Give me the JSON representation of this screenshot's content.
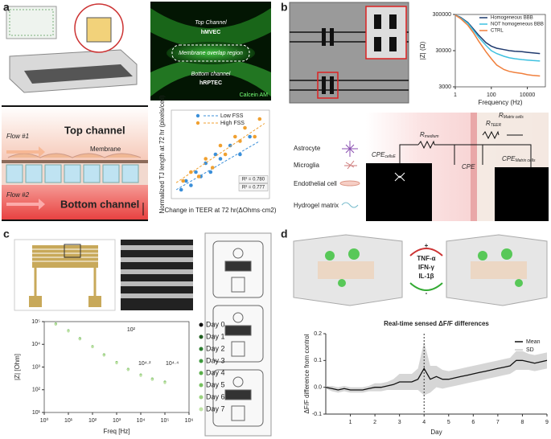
{
  "panel_labels": [
    "a",
    "b",
    "c",
    "d"
  ],
  "panel_a": {
    "image_labels": {
      "top_channel": "Top Channel",
      "top_cells": "hMVEC",
      "overlap": "Membrane overlap region",
      "bottom_channel": "Bottom channel",
      "bottom_cells": "hRPTEC",
      "stain": "Calcein AM"
    },
    "schematic": {
      "flow1": "Flow #1",
      "top": "Top channel",
      "membrane": "Membrane",
      "flow2": "Flow #2",
      "bottom": "Bottom channel"
    }
  },
  "panel_b": {
    "cell_types": [
      "Astrocyte",
      "Microglia",
      "Endothelial cell",
      "Hydrogel matrix"
    ],
    "circuit": [
      {
        "symbol": "CPE",
        "sub": "cellsE"
      },
      {
        "symbol": "R",
        "sub": "medium"
      },
      {
        "symbol": "R",
        "sub": "TEER"
      },
      {
        "symbol": "R",
        "sub": "Matrix cells"
      },
      {
        "symbol": "CPE"
      },
      {
        "symbol": "CPE",
        "sub": "Matrix cells"
      }
    ]
  },
  "panel_c": {
    "inset_labels": [
      "10²",
      "10⁴·²",
      "10⁴·⁴"
    ]
  },
  "panel_d": {
    "signs": [
      "+",
      "-"
    ],
    "cytokines": [
      "TNF-α",
      "IFN-γ",
      "IL-1β"
    ]
  },
  "chart_data": [
    {
      "type": "scatter",
      "xlabel": "Change in TEER at 72 hr(ΔOhms·cm2)",
      "ylabel": "Normalized TJ length at 72 hr (pixels/cell)",
      "xlim": [
        0,
        10
      ],
      "ylim": [
        0,
        10
      ],
      "series": [
        {
          "name": "Low FSS",
          "color": "#3b8fd9",
          "r2": "R² = 0.780",
          "x": [
            1,
            1.5,
            2,
            2.5,
            3,
            3.5,
            4,
            4.5,
            5,
            6,
            7,
            8
          ],
          "values": [
            1,
            2,
            1.5,
            3,
            2.5,
            4,
            3,
            5,
            4.5,
            6,
            5,
            7
          ],
          "trend": {
            "x": [
              0.5,
              9
            ],
            "values": [
              1,
              6.5
            ]
          }
        },
        {
          "name": "High FSS",
          "color": "#f0a030",
          "r2": "R² = 0.777",
          "x": [
            1.2,
            2,
            2.8,
            3.5,
            4.2,
            5,
            5.5,
            6.5,
            7,
            7.5,
            8.5,
            9
          ],
          "values": [
            2,
            3,
            2.5,
            4.5,
            3.5,
            6,
            5,
            7,
            6.5,
            8,
            7,
            9
          ],
          "trend": {
            "x": [
              0.5,
              9.5
            ],
            "values": [
              1.8,
              8.5
            ]
          }
        }
      ]
    },
    {
      "type": "line",
      "xlabel": "Frequency (Hz)",
      "ylabel": "|Z| (Ω)",
      "xlog": true,
      "ylog": true,
      "xlim": [
        1,
        100000
      ],
      "ylim": [
        3000,
        300000
      ],
      "xticks": [
        1,
        100,
        10000
      ],
      "yticks": [
        3000,
        30000,
        300000
      ],
      "x": [
        1,
        2,
        5,
        10,
        20,
        50,
        100,
        200,
        500,
        1000,
        2000,
        5000,
        10000,
        20000,
        50000
      ],
      "series": [
        {
          "name": "Homogeneous BBB",
          "color": "#1f3a6e",
          "values": [
            290000,
            250000,
            180000,
            120000,
            80000,
            50000,
            40000,
            35000,
            32000,
            30000,
            29000,
            28000,
            27000,
            26000,
            25000
          ]
        },
        {
          "name": "NOT homogeneous BBB",
          "color": "#3ec1e0",
          "values": [
            290000,
            240000,
            170000,
            110000,
            70000,
            42000,
            30000,
            25000,
            21000,
            19000,
            18000,
            17000,
            16500,
            16000,
            15500
          ]
        },
        {
          "name": "CTRL",
          "color": "#f07f3c",
          "values": [
            290000,
            230000,
            150000,
            95000,
            55000,
            28000,
            18000,
            12000,
            9000,
            8000,
            7500,
            7000,
            6500,
            6200,
            6000
          ]
        }
      ]
    },
    {
      "type": "line",
      "xlabel": "Freq [Hz]",
      "ylabel": "|Z| [Ohm]",
      "xlog": true,
      "ylog": true,
      "xlim": [
        1,
        1000000
      ],
      "ylim": [
        10,
        100000
      ],
      "xticks": [
        {
          "value": 1,
          "label": "10⁰"
        },
        {
          "value": 10,
          "label": "10¹"
        },
        {
          "value": 100,
          "label": "10²"
        },
        {
          "value": 1000,
          "label": "10³"
        },
        {
          "value": 10000,
          "label": "10⁴"
        },
        {
          "value": 100000,
          "label": "10⁵"
        },
        {
          "value": 1000000,
          "label": "10⁶"
        }
      ],
      "yticks": [
        {
          "value": 10,
          "label": "10¹"
        },
        {
          "value": 100,
          "label": "10²"
        },
        {
          "value": 1000,
          "label": "10³"
        },
        {
          "value": 10000,
          "label": "10⁴"
        },
        {
          "value": 100000,
          "label": "10⁵"
        }
      ],
      "x": [
        3,
        10,
        30,
        100,
        300,
        1000,
        3000,
        10000,
        30000,
        100000
      ],
      "series": [
        {
          "name": "Day 0",
          "color": "#111111",
          "values": [
            80000,
            40000,
            18000,
            8000,
            3500,
            1600,
            800,
            450,
            300,
            220
          ]
        },
        {
          "name": "Day 1",
          "color": "#1e5c1e",
          "values": [
            78000,
            39000,
            17500,
            7800,
            3400,
            1550,
            780,
            430,
            290,
            210
          ]
        },
        {
          "name": "Day 2",
          "color": "#2e7d32",
          "values": [
            76000,
            38000,
            17000,
            7600,
            3300,
            1500,
            760,
            420,
            280,
            205
          ]
        },
        {
          "name": "Day 3",
          "color": "#3f9a3f",
          "values": [
            82000,
            41000,
            18500,
            8200,
            3600,
            1650,
            820,
            460,
            310,
            225
          ]
        },
        {
          "name": "Day 4",
          "color": "#5aae4a",
          "values": [
            79000,
            39500,
            17800,
            7900,
            3450,
            1580,
            790,
            440,
            295,
            215
          ]
        },
        {
          "name": "Day 5",
          "color": "#78c060",
          "values": [
            77000,
            38500,
            17200,
            7700,
            3350,
            1520,
            770,
            425,
            285,
            208
          ]
        },
        {
          "name": "Day 6",
          "color": "#9ad27e",
          "values": [
            81000,
            40500,
            18200,
            8100,
            3550,
            1620,
            810,
            455,
            305,
            222
          ]
        },
        {
          "name": "Day 7",
          "color": "#bfe3a6",
          "values": [
            75000,
            37500,
            16800,
            7500,
            3250,
            1480,
            750,
            415,
            278,
            200
          ]
        }
      ]
    },
    {
      "type": "line",
      "title": "Real-time sensed ΔF/F differences",
      "xlabel": "Day",
      "ylabel": "ΔF/F difference from control",
      "xlim": [
        0,
        9
      ],
      "ylim": [
        -0.1,
        0.2
      ],
      "xticks": [
        1,
        2,
        3,
        4,
        5,
        6,
        7,
        8,
        9
      ],
      "yticks": [
        -0.1,
        {
          "value": 0,
          "label": "0.0"
        },
        0.1,
        0.2
      ],
      "vline": 4,
      "x": [
        0,
        0.25,
        0.5,
        0.75,
        1,
        1.25,
        1.5,
        1.75,
        2,
        2.25,
        2.5,
        2.75,
        3,
        3.25,
        3.5,
        3.75,
        4,
        4.25,
        4.5,
        4.75,
        5,
        5.25,
        5.5,
        5.75,
        6,
        6.25,
        6.5,
        6.75,
        7,
        7.25,
        7.5,
        7.75,
        8,
        8.25,
        8.5,
        8.75,
        9
      ],
      "series": [
        {
          "name": "Mean",
          "color": "#111111",
          "values": [
            0,
            -0.005,
            -0.01,
            -0.005,
            -0.01,
            -0.01,
            -0.01,
            -0.005,
            0,
            0,
            0.005,
            0.01,
            0.02,
            0.02,
            0.02,
            0.03,
            0.07,
            0.03,
            0.04,
            0.03,
            0.03,
            0.035,
            0.04,
            0.045,
            0.05,
            0.055,
            0.06,
            0.065,
            0.07,
            0.075,
            0.08,
            0.1,
            0.1,
            0.095,
            0.09,
            0.095,
            0.1
          ]
        },
        {
          "name": "SD",
          "color": "#cccccc",
          "values": [
            0.005,
            0.01,
            0.01,
            0.01,
            0.01,
            0.01,
            0.01,
            0.01,
            0.015,
            0.015,
            0.015,
            0.02,
            0.03,
            0.03,
            0.03,
            0.04,
            0.1,
            0.05,
            0.04,
            0.035,
            0.03,
            0.03,
            0.03,
            0.03,
            0.03,
            0.03,
            0.03,
            0.03,
            0.03,
            0.03,
            0.03,
            0.035,
            0.035,
            0.03,
            0.03,
            0.03,
            0.03
          ]
        }
      ]
    }
  ]
}
